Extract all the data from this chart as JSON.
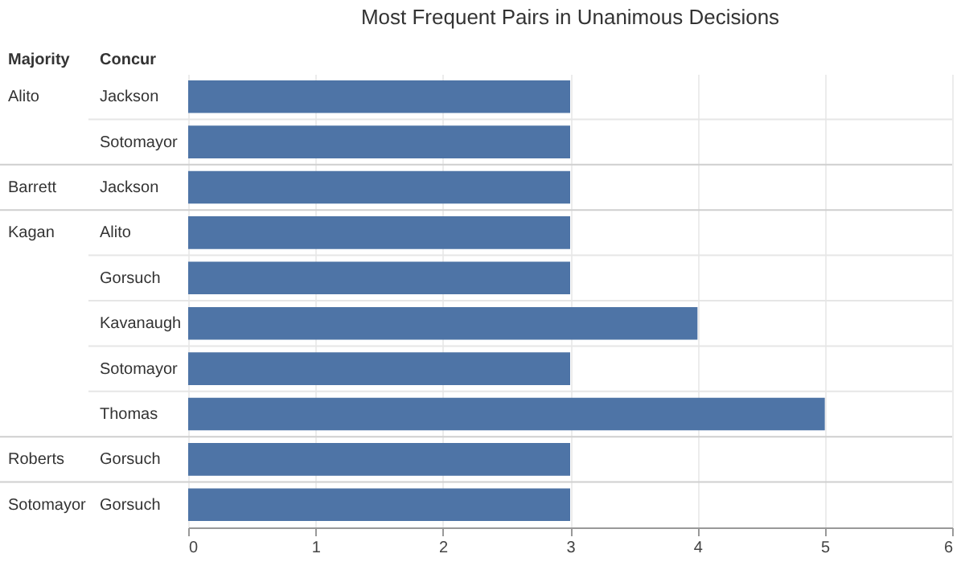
{
  "chart_data": {
    "type": "bar",
    "orientation": "horizontal",
    "title": "Most Frequent Pairs in Unanimous Decisions",
    "ylabel": "Concur",
    "categories": [
      "Jackson",
      "Sotomayor",
      "Jackson",
      "Alito",
      "Gorsuch",
      "Kavanaugh",
      "Sotomayor",
      "Thomas",
      "Gorsuch",
      "Gorsuch"
    ],
    "values": [
      3,
      3,
      3,
      3,
      3,
      4,
      3,
      5,
      3,
      3
    ],
    "color": "#4e74a6",
    "xlim": [
      0,
      6
    ],
    "xticks": [
      0,
      1,
      2,
      3,
      4,
      5,
      6
    ],
    "grid": "x",
    "y2_categories": [
      "Alito",
      null,
      "Barrett",
      "Kagan",
      null,
      null,
      null,
      null,
      "Roberts",
      "Sotomayor"
    ],
    "annotations": [
      "Majority"
    ]
  }
}
